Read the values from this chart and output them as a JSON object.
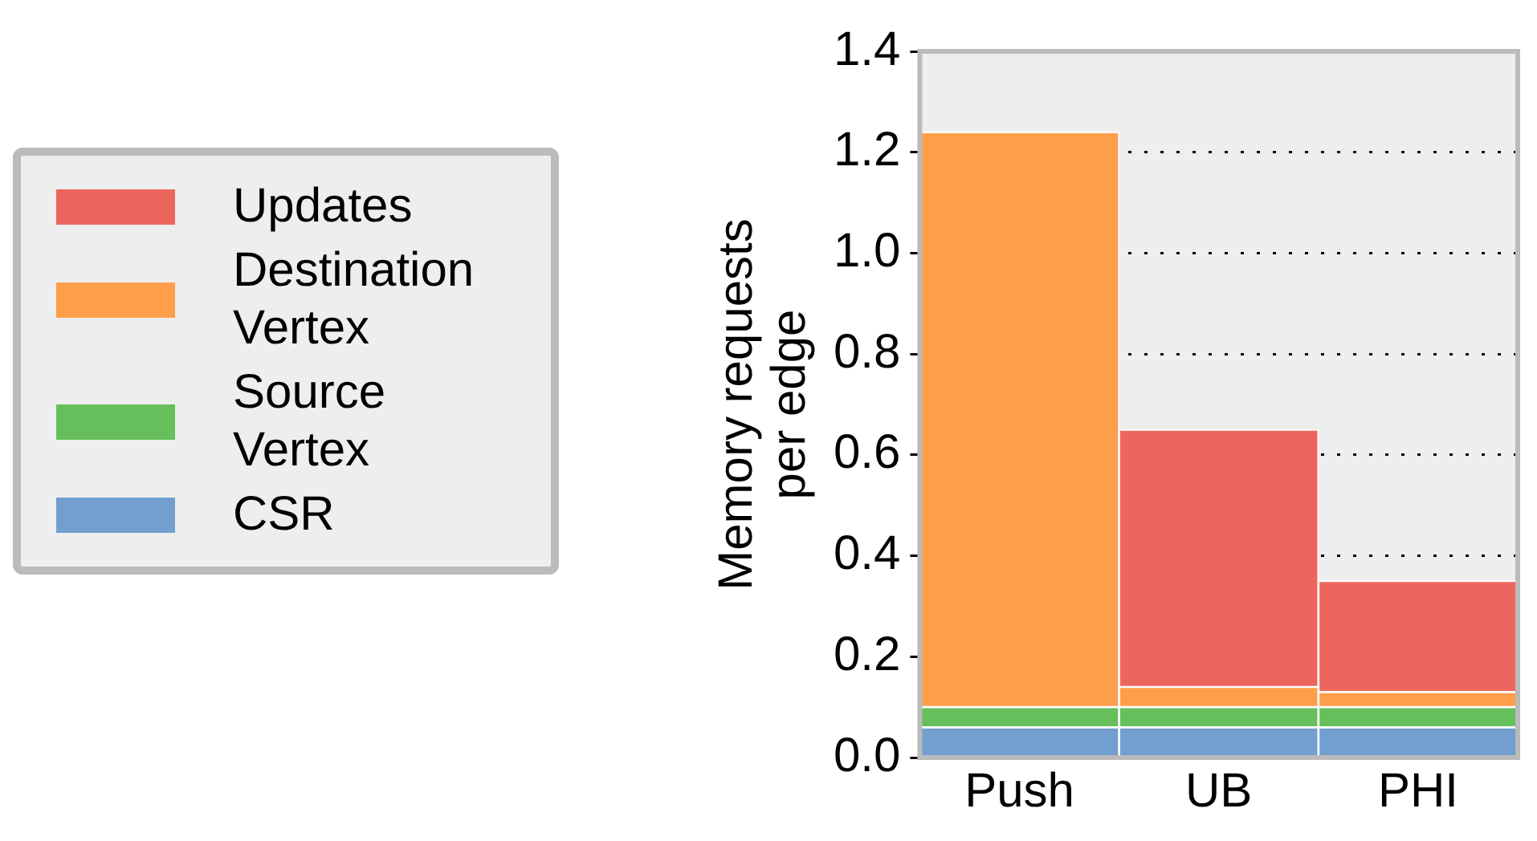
{
  "chart_data": {
    "type": "bar",
    "stacked": true,
    "ylabel": "Memory requests\nper edge",
    "categories": [
      "Push",
      "UB",
      "PHI"
    ],
    "series": [
      {
        "name": "CSR",
        "color": "#729fcf",
        "values": [
          0.06,
          0.06,
          0.06
        ]
      },
      {
        "name": "Source\nVertex",
        "color": "#67bf5c",
        "values": [
          0.04,
          0.04,
          0.04
        ]
      },
      {
        "name": "Destination\nVertex",
        "color": "#ff9e4a",
        "values": [
          1.14,
          0.04,
          0.03
        ]
      },
      {
        "name": "Updates",
        "color": "#ed665d",
        "values": [
          0,
          0.51,
          0.22
        ]
      }
    ],
    "ylim": [
      0,
      1.4
    ],
    "yticks": [
      {
        "value": 0,
        "label": "0.0"
      },
      {
        "value": 0.2,
        "label": "0.2"
      },
      {
        "value": 0.4,
        "label": "0.4"
      },
      {
        "value": 0.6,
        "label": "0.6"
      },
      {
        "value": 0.8,
        "label": "0.8"
      },
      {
        "value": 1,
        "label": "1.0"
      },
      {
        "value": 1.2,
        "label": "1.2"
      },
      {
        "value": 1.4,
        "label": "1.4"
      }
    ],
    "grid": "y",
    "legend": "left"
  }
}
